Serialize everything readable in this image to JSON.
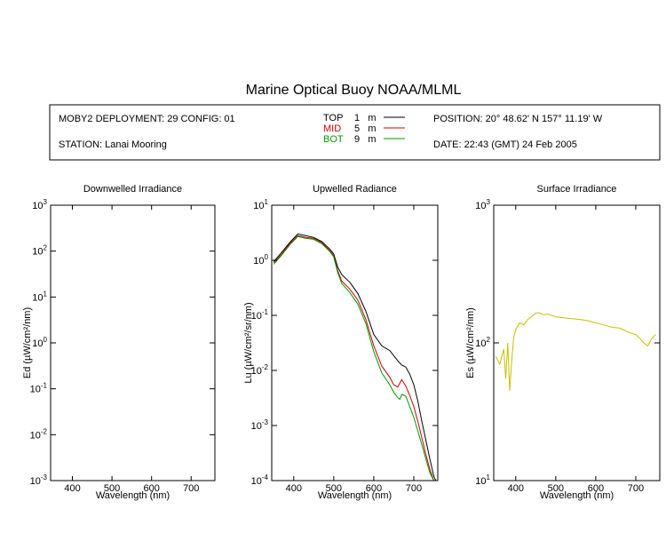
{
  "title": "Marine Optical Buoy NOAA/MLML",
  "info": {
    "deployment": "MOBY2 DEPLOYMENT: 29 CONFIG: 01",
    "station": "STATION: Lanai Mooring",
    "position": "POSITION: 20° 48.62' N   157° 11.19' W",
    "date": "DATE: 22:43 (GMT) 24 Feb 2005",
    "legend": [
      {
        "label": "TOP",
        "depth": "1",
        "unit": "m",
        "color": "#000000"
      },
      {
        "label": "MID",
        "depth": "5",
        "unit": "m",
        "color": "#cc0000"
      },
      {
        "label": "BOT",
        "depth": "9",
        "unit": "m",
        "color": "#009900"
      }
    ]
  },
  "chart_data": [
    {
      "type": "line",
      "title": "Downwelled Irradiance",
      "xlabel": "Wavelength (nm)",
      "ylabel": "Ed  (µW/cm²/nm)",
      "xlim": [
        345,
        760
      ],
      "ylim": [
        0.001,
        1000
      ],
      "yscale": "log",
      "xticks": [
        400,
        500,
        600,
        700
      ],
      "ytick_labels": [
        {
          "base": "10",
          "exp": "-3"
        },
        {
          "base": "10",
          "exp": "-2"
        },
        {
          "base": "10",
          "exp": "-1"
        },
        {
          "base": "10",
          "exp": "0"
        },
        {
          "base": "10",
          "exp": "1"
        },
        {
          "base": "10",
          "exp": "2"
        },
        {
          "base": "10",
          "exp": "3"
        }
      ],
      "series": []
    },
    {
      "type": "line",
      "title": "Upwelled Radiance",
      "xlabel": "Wavelength (nm)",
      "ylabel": "Lu  (µW/cm²/sr/nm)",
      "xlim": [
        345,
        760
      ],
      "ylim": [
        0.0001,
        10
      ],
      "yscale": "log",
      "xticks": [
        400,
        500,
        600,
        700
      ],
      "ytick_labels": [
        {
          "base": "10",
          "exp": "-4"
        },
        {
          "base": "10",
          "exp": "-3"
        },
        {
          "base": "10",
          "exp": "-2"
        },
        {
          "base": "10",
          "exp": "-1"
        },
        {
          "base": "10",
          "exp": "0"
        },
        {
          "base": "10",
          "exp": "1"
        }
      ],
      "series": [
        {
          "name": "TOP",
          "color": "#000000",
          "x": [
            350,
            370,
            390,
            410,
            430,
            450,
            470,
            490,
            500,
            510,
            520,
            540,
            560,
            580,
            600,
            620,
            640,
            660,
            670,
            680,
            690,
            700,
            710,
            720,
            730,
            740,
            750,
            755
          ],
          "y": [
            0.95,
            1.4,
            2.1,
            3.0,
            2.8,
            2.6,
            2.2,
            1.6,
            1.3,
            0.75,
            0.55,
            0.4,
            0.25,
            0.12,
            0.045,
            0.028,
            0.023,
            0.015,
            0.0125,
            0.0115,
            0.0085,
            0.0055,
            0.0028,
            0.0012,
            0.00055,
            0.00025,
            0.00012,
            0.0001
          ]
        },
        {
          "name": "MID",
          "color": "#cc0000",
          "x": [
            350,
            370,
            390,
            410,
            430,
            450,
            470,
            490,
            500,
            510,
            520,
            540,
            560,
            580,
            600,
            620,
            640,
            650,
            660,
            670,
            680,
            690,
            700,
            710,
            720,
            730,
            740,
            750,
            755
          ],
          "y": [
            0.9,
            1.3,
            2.0,
            2.8,
            2.6,
            2.5,
            2.1,
            1.5,
            1.2,
            0.65,
            0.42,
            0.3,
            0.19,
            0.085,
            0.028,
            0.012,
            0.0075,
            0.0055,
            0.005,
            0.0068,
            0.0052,
            0.0035,
            0.0022,
            0.0012,
            0.0006,
            0.0003,
            0.00016,
            0.0001,
            0.0001
          ]
        },
        {
          "name": "BOT",
          "color": "#009900",
          "x": [
            350,
            370,
            390,
            410,
            430,
            450,
            470,
            490,
            500,
            510,
            520,
            540,
            560,
            580,
            600,
            620,
            640,
            650,
            660,
            665,
            670,
            680,
            690,
            700,
            710,
            720,
            730,
            740,
            750,
            755
          ],
          "y": [
            0.85,
            1.25,
            1.9,
            2.7,
            2.5,
            2.4,
            2.0,
            1.45,
            1.15,
            0.6,
            0.38,
            0.26,
            0.16,
            0.072,
            0.022,
            0.009,
            0.0055,
            0.004,
            0.0032,
            0.003,
            0.0037,
            0.0034,
            0.0022,
            0.0014,
            0.0008,
            0.00045,
            0.00025,
            0.00014,
            0.0001,
            0.0001
          ]
        }
      ]
    },
    {
      "type": "line",
      "title": "Surface Irradiance",
      "xlabel": "Wavelength (nm)",
      "ylabel": "Es  (µW/cm²/nm)",
      "xlim": [
        345,
        760
      ],
      "ylim": [
        10,
        1000
      ],
      "yscale": "log",
      "xticks": [
        400,
        500,
        600,
        700
      ],
      "ytick_labels": [
        {
          "base": "10",
          "exp": "1"
        },
        {
          "base": "10",
          "exp": "2"
        },
        {
          "base": "10",
          "exp": "3"
        }
      ],
      "series": [
        {
          "name": "Es",
          "color": "#c8c000",
          "x": [
            350,
            360,
            370,
            375,
            380,
            385,
            390,
            395,
            400,
            410,
            420,
            430,
            440,
            450,
            460,
            470,
            480,
            490,
            500,
            520,
            540,
            560,
            580,
            600,
            620,
            640,
            660,
            680,
            700,
            710,
            720,
            730,
            740,
            750
          ],
          "y": [
            80,
            70,
            90,
            55,
            100,
            45,
            75,
            110,
            125,
            140,
            135,
            148,
            155,
            165,
            165,
            160,
            162,
            158,
            155,
            152,
            150,
            148,
            145,
            140,
            135,
            130,
            128,
            120,
            115,
            108,
            100,
            95,
            108,
            115
          ]
        }
      ]
    }
  ]
}
